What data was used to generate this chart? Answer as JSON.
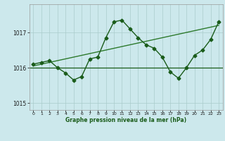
{
  "x": [
    0,
    1,
    2,
    3,
    4,
    5,
    6,
    7,
    8,
    9,
    10,
    11,
    12,
    13,
    14,
    15,
    16,
    17,
    18,
    19,
    20,
    21,
    22,
    23
  ],
  "y_line": [
    1016.1,
    1016.15,
    1016.2,
    1016.0,
    1015.85,
    1015.65,
    1015.75,
    1016.25,
    1016.3,
    1016.85,
    1017.3,
    1017.35,
    1017.1,
    1016.85,
    1016.65,
    1016.55,
    1016.3,
    1015.88,
    1015.7,
    1016.0,
    1016.35,
    1016.5,
    1016.8,
    1017.3
  ],
  "y_trend": [
    1016.05,
    1016.1,
    1016.15,
    1016.2,
    1016.25,
    1016.3,
    1016.35,
    1016.4,
    1016.45,
    1016.5,
    1016.55,
    1016.6,
    1016.65,
    1016.7,
    1016.75,
    1016.8,
    1016.85,
    1016.9,
    1016.95,
    1017.0,
    1017.05,
    1017.1,
    1017.15,
    1017.2
  ],
  "y_mean": 1016.0,
  "ylim": [
    1014.8,
    1017.8
  ],
  "yticks": [
    1015,
    1016,
    1017
  ],
  "xticks": [
    0,
    1,
    2,
    3,
    4,
    5,
    6,
    7,
    8,
    9,
    10,
    11,
    12,
    13,
    14,
    15,
    16,
    17,
    18,
    19,
    20,
    21,
    22,
    23
  ],
  "line_color": "#1a5c1a",
  "trend_color": "#2d7a2d",
  "mean_color": "#1a5c1a",
  "bg_color": "#cce8ec",
  "grid_color": "#aacccc",
  "xlabel": "Graphe pression niveau de la mer (hPa)",
  "marker": "D",
  "marker_size": 2.5,
  "line_width": 1.0
}
